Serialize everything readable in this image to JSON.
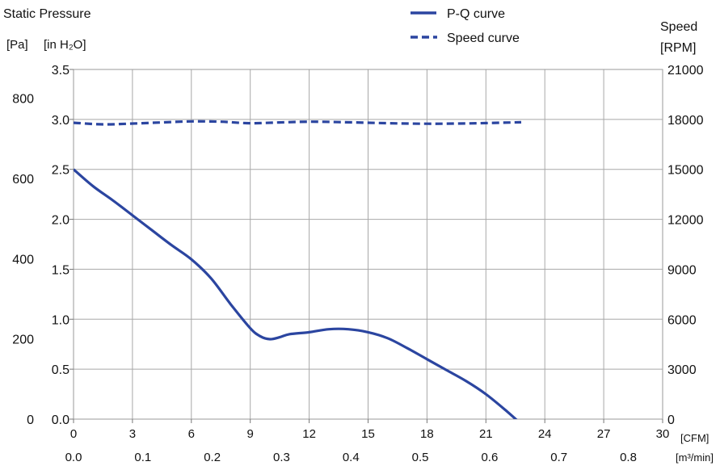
{
  "chart_data": {
    "type": "line",
    "title_left": "Static Pressure",
    "unit_pa": "[Pa]",
    "unit_inh2o": "[in H₂O]",
    "title_right": "Speed",
    "unit_rpm": "[RPM]",
    "unit_cfm": "[CFM]",
    "unit_m3min": "[m³/min]",
    "legend": {
      "placement": "top-center",
      "items": [
        "P-Q curve",
        "Speed curve"
      ]
    },
    "grid": true,
    "colors": {
      "pq": "#2b45a0",
      "speed": "#2b45a0",
      "grid": "#a8a8a8"
    },
    "x_cfm": {
      "lim": [
        0,
        30
      ],
      "ticks": [
        "0",
        "3",
        "6",
        "9",
        "12",
        "15",
        "18",
        "21",
        "24",
        "27",
        "30"
      ]
    },
    "x_m3min": {
      "lim": [
        0,
        0.8495
      ],
      "ticks": [
        "0.0",
        "0.1",
        "0.2",
        "0.3",
        "0.4",
        "0.5",
        "0.6",
        "0.7",
        "0.8"
      ]
    },
    "y_inh2o": {
      "lim": [
        0,
        3.5
      ],
      "ticks": [
        "0.0",
        "0.5",
        "1.0",
        "1.5",
        "2.0",
        "2.5",
        "3.0",
        "3.5"
      ]
    },
    "y_pa": {
      "lim": [
        0,
        871.8
      ],
      "ticks": [
        "0",
        "200",
        "400",
        "600",
        "800"
      ]
    },
    "y_rpm": {
      "lim": [
        0,
        21000
      ],
      "ticks": [
        "0",
        "3000",
        "6000",
        "9000",
        "12000",
        "15000",
        "18000",
        "21000"
      ]
    },
    "series": [
      {
        "name": "P-Q curve",
        "axis": "inH2O",
        "style": "solid",
        "x": [
          0,
          1,
          2,
          3,
          4,
          5,
          6,
          7,
          8,
          9,
          9.5,
          10,
          10.5,
          11,
          12,
          13,
          14,
          15,
          16,
          17,
          18,
          19,
          20,
          21,
          22,
          22.8
        ],
        "y": [
          2.5,
          2.33,
          2.19,
          2.04,
          1.89,
          1.74,
          1.6,
          1.41,
          1.15,
          0.91,
          0.83,
          0.8,
          0.82,
          0.85,
          0.87,
          0.9,
          0.9,
          0.87,
          0.81,
          0.71,
          0.6,
          0.49,
          0.38,
          0.25,
          0.09,
          -0.05
        ]
      },
      {
        "name": "Speed curve",
        "axis": "RPM",
        "style": "dashed",
        "x": [
          0,
          1.5,
          3,
          4.5,
          6,
          7.5,
          9,
          10.5,
          12,
          13.5,
          15,
          16.5,
          18,
          19.5,
          21,
          22.8
        ],
        "y": [
          17800,
          17700,
          17750,
          17820,
          17880,
          17860,
          17770,
          17820,
          17860,
          17840,
          17800,
          17760,
          17740,
          17750,
          17780,
          17830
        ]
      }
    ]
  }
}
